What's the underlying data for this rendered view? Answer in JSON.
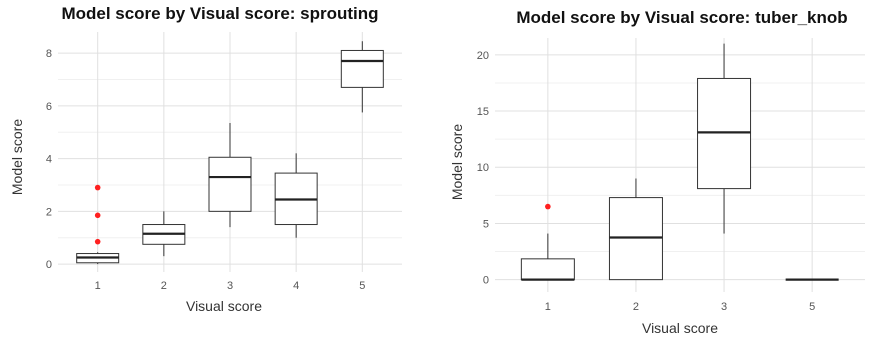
{
  "chart_data": [
    {
      "type": "boxplot",
      "title": "Model score by Visual score: sprouting",
      "xlabel": "Visual score",
      "ylabel": "Model score",
      "categories": [
        "1",
        "2",
        "3",
        "4",
        "5"
      ],
      "ylim": [
        -0.3,
        8.8
      ],
      "yticks": [
        0,
        2,
        4,
        6,
        8
      ],
      "grid": true,
      "boxes": [
        {
          "category": "1",
          "whisker_low": 0.0,
          "q1": 0.05,
          "median": 0.25,
          "q3": 0.4,
          "whisker_high": 0.45,
          "outliers": [
            0.85,
            1.85,
            2.9
          ]
        },
        {
          "category": "2",
          "whisker_low": 0.3,
          "q1": 0.75,
          "median": 1.15,
          "q3": 1.5,
          "whisker_high": 2.0,
          "outliers": []
        },
        {
          "category": "3",
          "whisker_low": 1.4,
          "q1": 2.0,
          "median": 3.3,
          "q3": 4.05,
          "whisker_high": 5.35,
          "outliers": []
        },
        {
          "category": "4",
          "whisker_low": 1.0,
          "q1": 1.5,
          "median": 2.45,
          "q3": 3.45,
          "whisker_high": 4.2,
          "outliers": []
        },
        {
          "category": "5",
          "whisker_low": 5.75,
          "q1": 6.7,
          "median": 7.7,
          "q3": 8.1,
          "whisker_high": 8.45,
          "outliers": []
        }
      ]
    },
    {
      "type": "boxplot",
      "title": "Model score by Visual score: tuber_knob",
      "xlabel": "Visual score",
      "ylabel": "Model score",
      "categories": [
        "1",
        "2",
        "3",
        "5"
      ],
      "ylim": [
        -1.1,
        21.5
      ],
      "yticks": [
        0,
        5,
        10,
        15,
        20
      ],
      "grid": true,
      "boxes": [
        {
          "category": "1",
          "whisker_low": 0.0,
          "q1": 0.0,
          "median": 0.0,
          "q3": 1.85,
          "whisker_high": 4.1,
          "outliers": [
            6.5
          ]
        },
        {
          "category": "2",
          "whisker_low": 0.0,
          "q1": 0.0,
          "median": 3.75,
          "q3": 7.3,
          "whisker_high": 9.0,
          "outliers": []
        },
        {
          "category": "3",
          "whisker_low": 4.1,
          "q1": 8.1,
          "median": 13.1,
          "q3": 17.9,
          "whisker_high": 21.0,
          "outliers": []
        },
        {
          "category": "5",
          "whisker_low": 0.0,
          "q1": 0.0,
          "median": 0.0,
          "q3": 0.0,
          "whisker_high": 0.0,
          "outliers": []
        }
      ]
    }
  ]
}
